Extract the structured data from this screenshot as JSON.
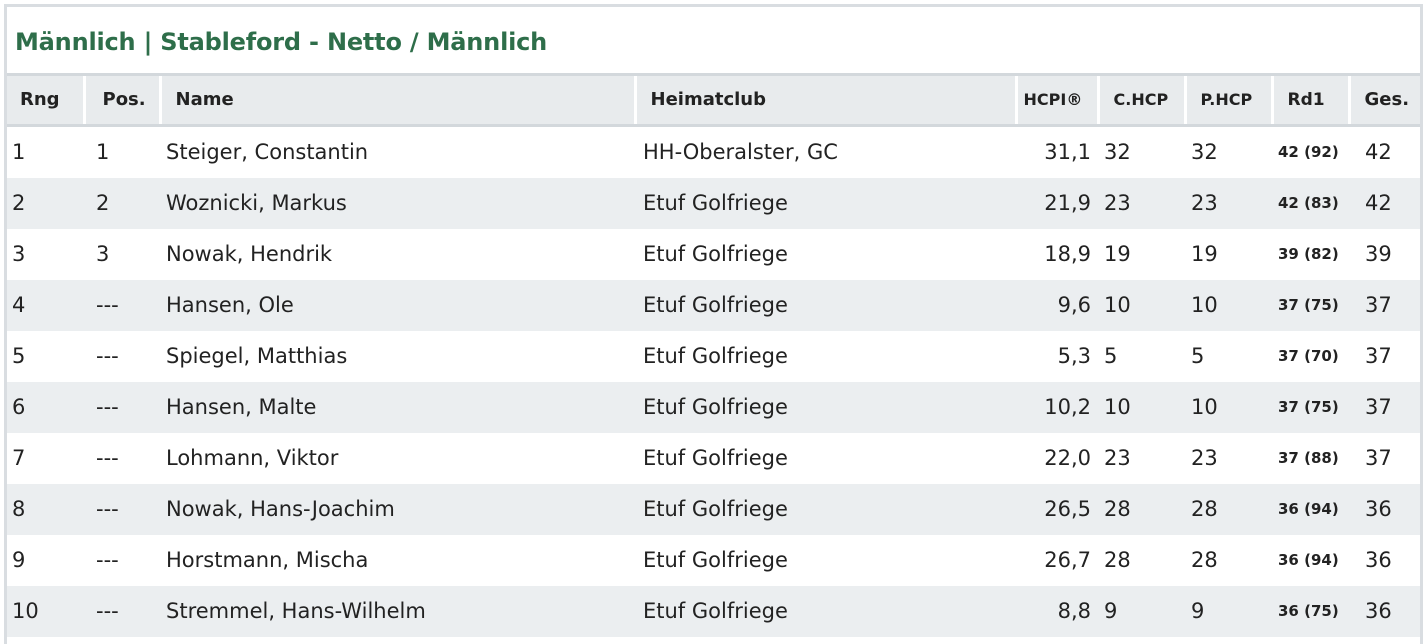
{
  "title": "Männlich | Stableford - Netto / Männlich",
  "columns": {
    "rng": "Rng",
    "pos": "Pos.",
    "name": "Name",
    "club": "Heimatclub",
    "hcpi": "HCPI®",
    "chcp": "C.HCP",
    "phcp": "P.HCP",
    "rd1": "Rd1",
    "ges": "Ges."
  },
  "rows": [
    {
      "rng": "1",
      "pos": "1",
      "name": "Steiger, Constantin",
      "club": "HH-Oberalster, GC",
      "hcpi": "31,1",
      "chcp": "32",
      "phcp": "32",
      "rd1": "42 (92)",
      "ges": "42"
    },
    {
      "rng": "2",
      "pos": "2",
      "name": "Woznicki, Markus",
      "club": "Etuf Golfriege",
      "hcpi": "21,9",
      "chcp": "23",
      "phcp": "23",
      "rd1": "42 (83)",
      "ges": "42"
    },
    {
      "rng": "3",
      "pos": "3",
      "name": "Nowak, Hendrik",
      "club": "Etuf Golfriege",
      "hcpi": "18,9",
      "chcp": "19",
      "phcp": "19",
      "rd1": "39 (82)",
      "ges": "39"
    },
    {
      "rng": "4",
      "pos": "---",
      "name": "Hansen, Ole",
      "club": "Etuf Golfriege",
      "hcpi": "9,6",
      "chcp": "10",
      "phcp": "10",
      "rd1": "37 (75)",
      "ges": "37"
    },
    {
      "rng": "5",
      "pos": "---",
      "name": "Spiegel, Matthias",
      "club": "Etuf Golfriege",
      "hcpi": "5,3",
      "chcp": "5",
      "phcp": "5",
      "rd1": "37 (70)",
      "ges": "37"
    },
    {
      "rng": "6",
      "pos": "---",
      "name": "Hansen, Malte",
      "club": "Etuf Golfriege",
      "hcpi": "10,2",
      "chcp": "10",
      "phcp": "10",
      "rd1": "37 (75)",
      "ges": "37"
    },
    {
      "rng": "7",
      "pos": "---",
      "name": "Lohmann, Viktor",
      "club": "Etuf Golfriege",
      "hcpi": "22,0",
      "chcp": "23",
      "phcp": "23",
      "rd1": "37 (88)",
      "ges": "37"
    },
    {
      "rng": "8",
      "pos": "---",
      "name": "Nowak, Hans-Joachim",
      "club": "Etuf Golfriege",
      "hcpi": "26,5",
      "chcp": "28",
      "phcp": "28",
      "rd1": "36 (94)",
      "ges": "36"
    },
    {
      "rng": "9",
      "pos": "---",
      "name": "Horstmann, Mischa",
      "club": "Etuf Golfriege",
      "hcpi": "26,7",
      "chcp": "28",
      "phcp": "28",
      "rd1": "36 (94)",
      "ges": "36"
    },
    {
      "rng": "10",
      "pos": "---",
      "name": "Stremmel, Hans-Wilhelm",
      "club": "Etuf Golfriege",
      "hcpi": "8,8",
      "chcp": "9",
      "phcp": "9",
      "rd1": "36 (75)",
      "ges": "36"
    }
  ]
}
